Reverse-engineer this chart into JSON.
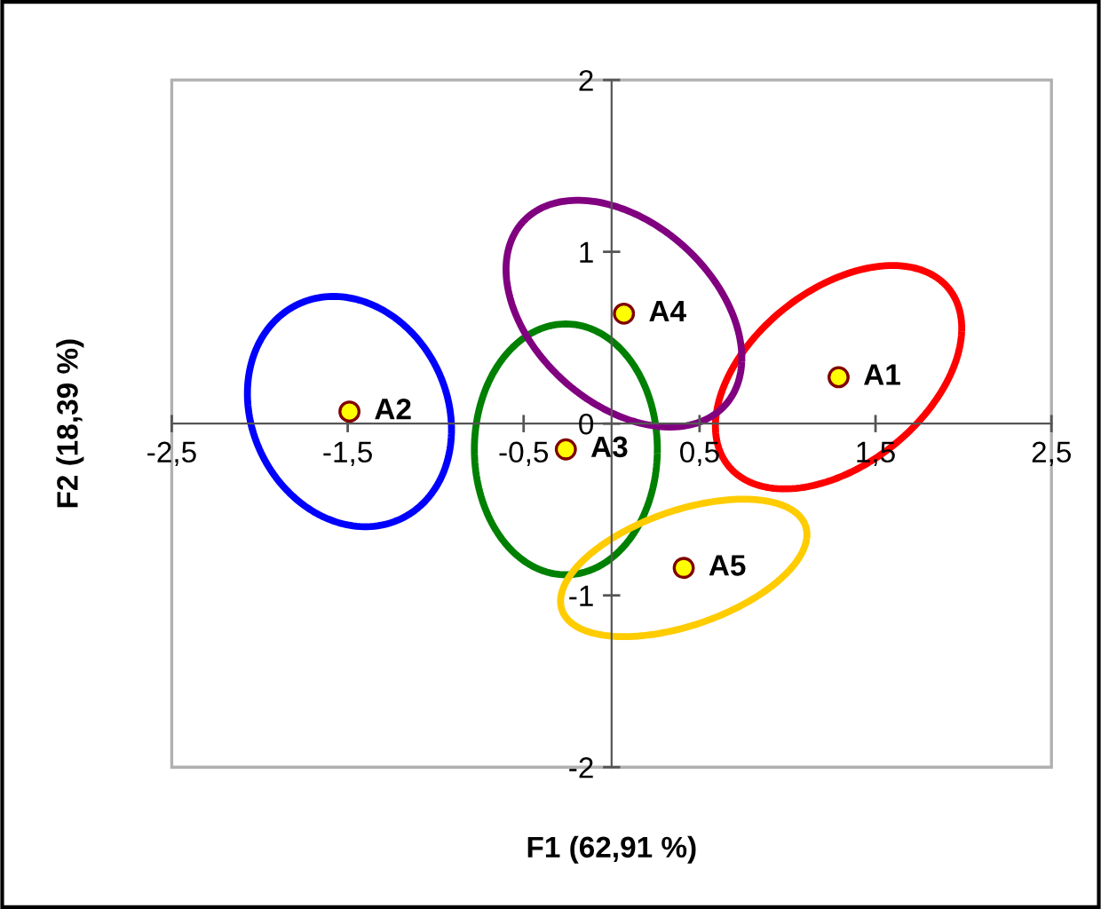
{
  "chart_data": {
    "type": "scatter",
    "xlabel": "F1 (62,91 %)",
    "ylabel": "F2 (18,39 %)",
    "xlim": [
      -2.5,
      2.5
    ],
    "ylim": [
      -2,
      2
    ],
    "xticks": [
      {
        "value": -2.5,
        "label": "-2,5"
      },
      {
        "value": -1.5,
        "label": "-1,5"
      },
      {
        "value": -0.5,
        "label": "-0,5"
      },
      {
        "value": 0.5,
        "label": "0,5"
      },
      {
        "value": 1.5,
        "label": "1,5"
      },
      {
        "value": 2.5,
        "label": "2,5"
      }
    ],
    "yticks": [
      -2,
      -1,
      0,
      1,
      2
    ],
    "grid": false,
    "legend": false,
    "series": [
      {
        "color": "#ffff00",
        "marker": "circle",
        "x": [
          1.29,
          -1.49,
          -0.26,
          0.07,
          0.41
        ],
        "values": [
          0.27,
          0.07,
          -0.15,
          0.64,
          -0.84
        ]
      }
    ],
    "annotations": [
      {
        "text": "A1",
        "x": 1.29,
        "y": 0.27
      },
      {
        "text": "A2",
        "x": -1.49,
        "y": 0.07
      },
      {
        "text": "A3",
        "x": -0.26,
        "y": -0.15
      },
      {
        "text": "A4",
        "x": 0.07,
        "y": 0.64
      },
      {
        "text": "A5",
        "x": 0.41,
        "y": -0.84
      }
    ]
  }
}
